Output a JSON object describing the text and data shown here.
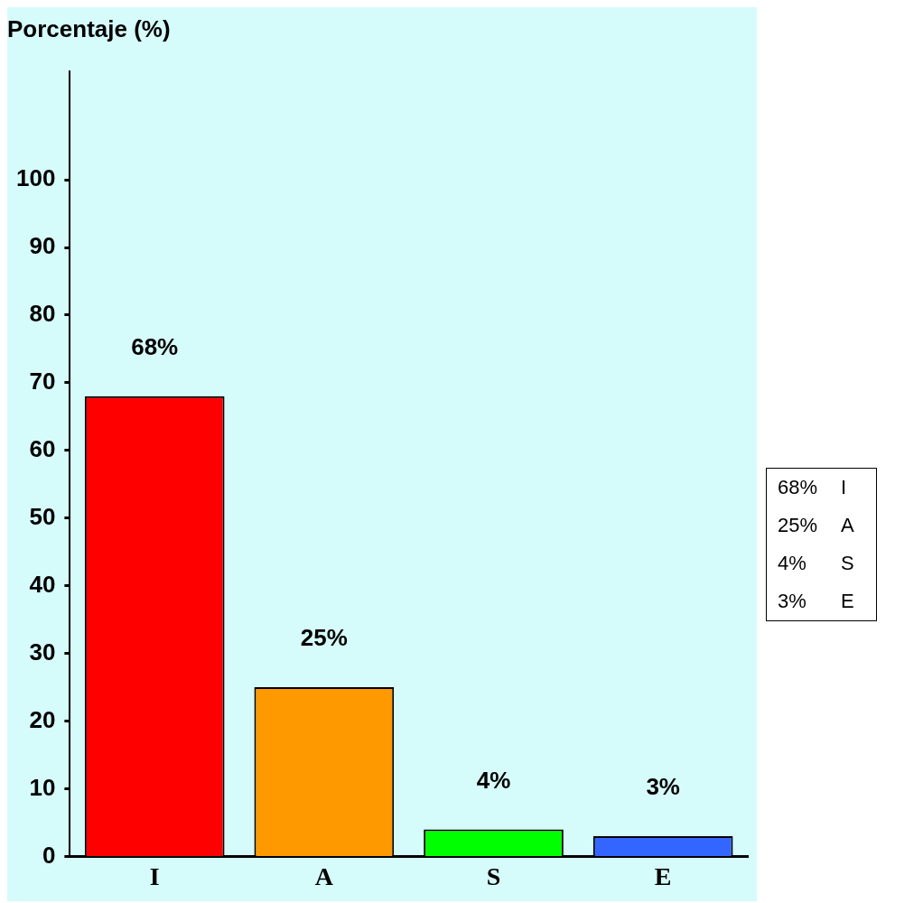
{
  "chart_data": {
    "type": "bar",
    "ylabel": "Porcentaje (%)",
    "categories": [
      "I",
      "A",
      "S",
      "E"
    ],
    "values": [
      68,
      25,
      4,
      3
    ],
    "colors": [
      "#ff0000",
      "#ff9900",
      "#00ff00",
      "#3366ff"
    ],
    "value_labels": [
      "68%",
      "25%",
      "4%",
      "3%"
    ],
    "ylim": [
      0,
      116
    ],
    "yticks": [
      0,
      10,
      20,
      30,
      40,
      50,
      60,
      70,
      80,
      90,
      100
    ],
    "grid": false,
    "legend": false
  }
}
